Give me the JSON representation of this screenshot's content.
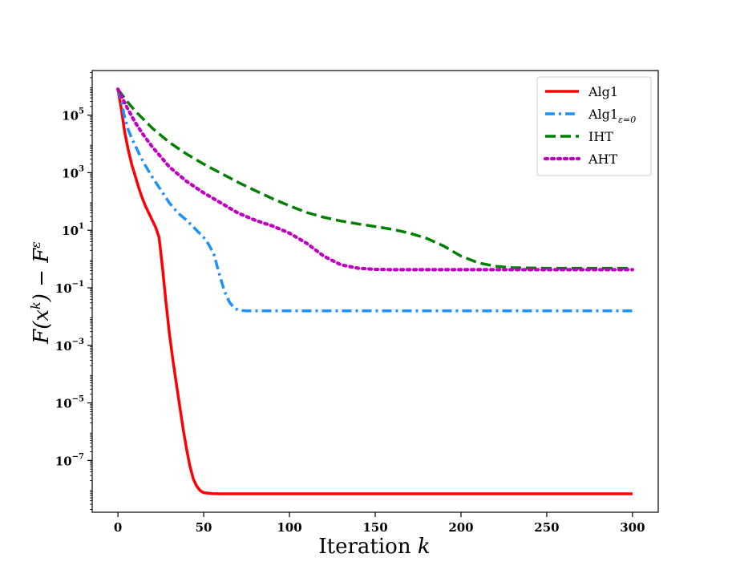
{
  "chart_data": {
    "type": "line",
    "title": "",
    "xlabel": "Iteration",
    "xlabel_var": "k",
    "ylabel": "F(x^k) − F^ε",
    "xlim": [
      -15,
      315
    ],
    "ylim_log10": [
      -8.8,
      6.55
    ],
    "yscale": "log",
    "xticks": [
      0,
      50,
      100,
      150,
      200,
      250,
      300
    ],
    "yticks": [
      {
        "base": "10",
        "exp": "5",
        "log10": 5
      },
      {
        "base": "10",
        "exp": "3",
        "log10": 3
      },
      {
        "base": "10",
        "exp": "1",
        "log10": 1
      },
      {
        "base": "10",
        "exp": "−1",
        "log10": -1
      },
      {
        "base": "10",
        "exp": "−3",
        "log10": -3
      },
      {
        "base": "10",
        "exp": "−5",
        "log10": -5
      },
      {
        "base": "10",
        "exp": "−7",
        "log10": -7
      }
    ],
    "grid": false,
    "legend_position": "top-right",
    "series": [
      {
        "name": "Alg1",
        "name_sub": "",
        "color": "#ff0000",
        "dash": "solid",
        "x": [
          0,
          2,
          4,
          6,
          8,
          10,
          12,
          14,
          16,
          18,
          20,
          22,
          24,
          26,
          28,
          30,
          32,
          34,
          36,
          38,
          40,
          42,
          44,
          46,
          48,
          50,
          55,
          60,
          80,
          100,
          150,
          200,
          250,
          300
        ],
        "log10_y": [
          5.9,
          5.2,
          4.4,
          3.8,
          3.3,
          2.9,
          2.5,
          2.15,
          1.85,
          1.6,
          1.35,
          1.1,
          0.75,
          -0.3,
          -1.5,
          -2.6,
          -3.5,
          -4.3,
          -5.1,
          -5.9,
          -6.6,
          -7.2,
          -7.65,
          -7.9,
          -8.05,
          -8.12,
          -8.15,
          -8.16,
          -8.16,
          -8.16,
          -8.16,
          -8.16,
          -8.16,
          -8.16
        ]
      },
      {
        "name": "Alg1",
        "name_sub": "ε=0",
        "color": "#1e90ff",
        "dash": "dashdot",
        "x": [
          0,
          2,
          4,
          6,
          8,
          10,
          12,
          15,
          20,
          25,
          30,
          35,
          40,
          45,
          50,
          53,
          56,
          59,
          62,
          65,
          68,
          71,
          75,
          80,
          90,
          100,
          150,
          200,
          250,
          300
        ],
        "log10_y": [
          5.9,
          5.5,
          4.9,
          4.5,
          4.2,
          3.95,
          3.7,
          3.35,
          2.85,
          2.4,
          1.95,
          1.6,
          1.35,
          1.05,
          0.75,
          0.5,
          0.15,
          -0.5,
          -1.1,
          -1.5,
          -1.72,
          -1.78,
          -1.8,
          -1.8,
          -1.8,
          -1.8,
          -1.8,
          -1.8,
          -1.8,
          -1.8
        ]
      },
      {
        "name": "IHT",
        "name_sub": "",
        "color": "#008000",
        "dash": "dashed",
        "x": [
          0,
          5,
          10,
          20,
          30,
          40,
          50,
          60,
          70,
          80,
          90,
          100,
          110,
          120,
          130,
          140,
          150,
          160,
          170,
          180,
          190,
          200,
          210,
          220,
          230,
          240,
          250,
          260,
          270,
          280,
          290,
          300
        ],
        "log10_y": [
          5.9,
          5.5,
          5.15,
          4.55,
          4.05,
          3.65,
          3.3,
          2.98,
          2.67,
          2.38,
          2.1,
          1.85,
          1.62,
          1.45,
          1.32,
          1.22,
          1.13,
          1.03,
          0.9,
          0.72,
          0.45,
          0.1,
          -0.13,
          -0.25,
          -0.3,
          -0.31,
          -0.32,
          -0.32,
          -0.32,
          -0.32,
          -0.32,
          -0.32
        ]
      },
      {
        "name": "AHT",
        "name_sub": "",
        "color": "#bf00bf",
        "dash": "dotted",
        "x": [
          0,
          5,
          10,
          15,
          20,
          30,
          40,
          50,
          60,
          70,
          80,
          90,
          100,
          110,
          120,
          130,
          140,
          150,
          160,
          180,
          200,
          250,
          300
        ],
        "log10_y": [
          5.9,
          5.3,
          4.75,
          4.3,
          3.9,
          3.2,
          2.7,
          2.3,
          1.95,
          1.6,
          1.35,
          1.15,
          0.9,
          0.55,
          0.1,
          -0.2,
          -0.32,
          -0.36,
          -0.37,
          -0.37,
          -0.37,
          -0.37,
          -0.37
        ]
      }
    ]
  }
}
